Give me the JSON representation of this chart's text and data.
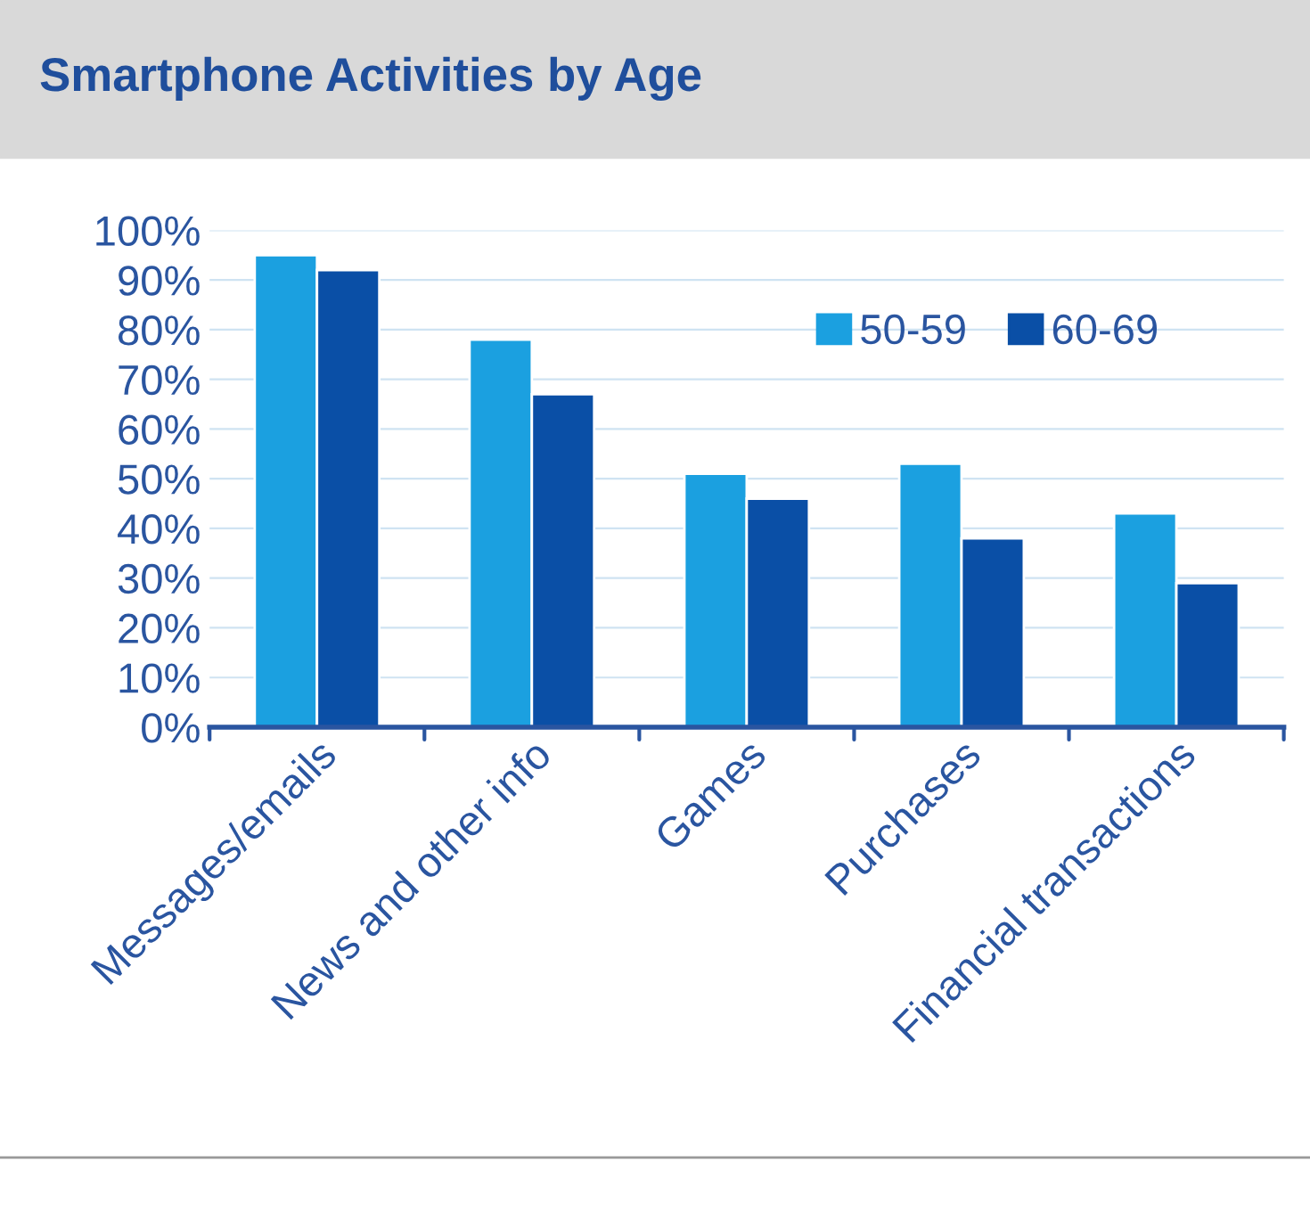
{
  "chart_data": {
    "type": "bar",
    "title": "Smartphone Activities by Age",
    "categories": [
      "Messages/emails",
      "News and other info",
      "Games",
      "Purchases",
      "Financial transactions"
    ],
    "series": [
      {
        "name": "50-59",
        "color": "#1ba0e0",
        "values": [
          95,
          78,
          51,
          53,
          43
        ]
      },
      {
        "name": "60-69",
        "color": "#0a4fa6",
        "values": [
          92,
          67,
          46,
          38,
          29
        ]
      }
    ],
    "ylim": [
      0,
      100
    ],
    "yticks": [
      {
        "value": 0,
        "label": "0%"
      },
      {
        "value": 10,
        "label": "10%"
      },
      {
        "value": 20,
        "label": "20%"
      },
      {
        "value": 30,
        "label": "30%"
      },
      {
        "value": 40,
        "label": "40%"
      },
      {
        "value": 50,
        "label": "50%"
      },
      {
        "value": 60,
        "label": "60%"
      },
      {
        "value": 70,
        "label": "70%"
      },
      {
        "value": 80,
        "label": "80%"
      },
      {
        "value": 90,
        "label": "90%"
      },
      {
        "value": 100,
        "label": "100%"
      }
    ],
    "grid": "y",
    "legend": "top right"
  }
}
